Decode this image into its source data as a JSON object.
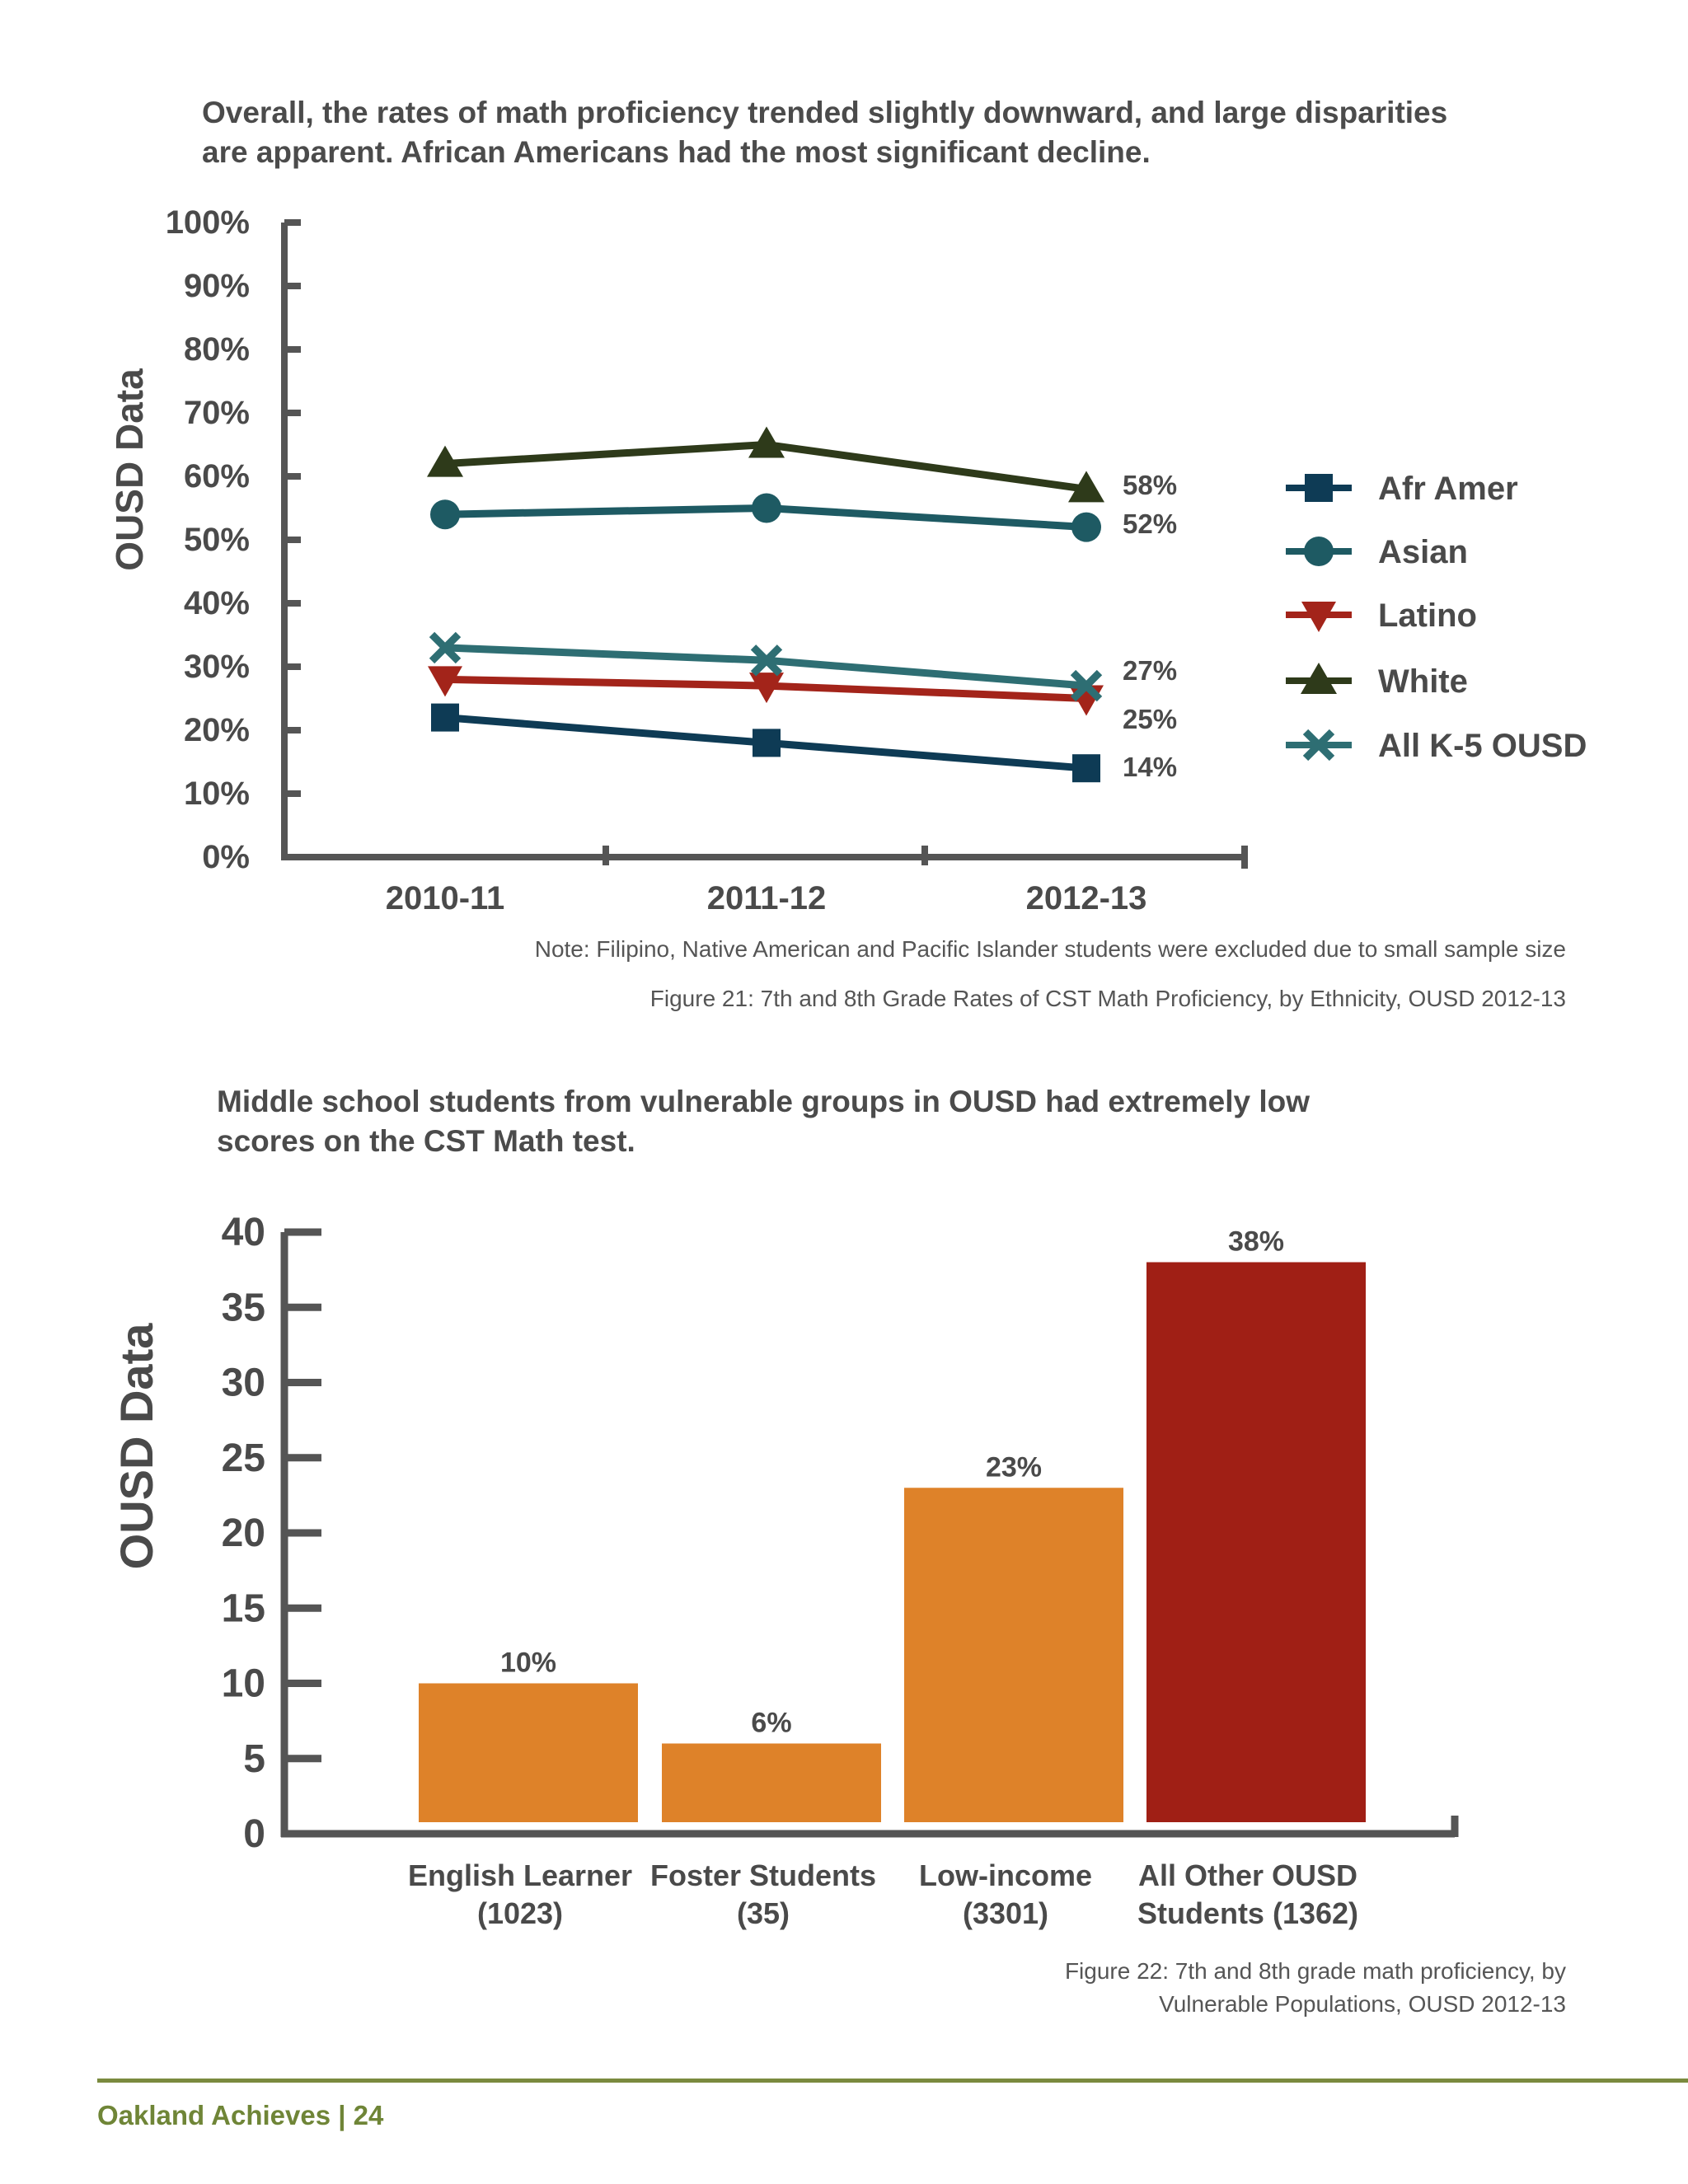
{
  "figure1": {
    "headline": [
      "Overall, the rates of math proficiency trended slightly downward, and large disparities",
      "are apparent.  African Americans had the most significant decline."
    ],
    "note": "Note: Filipino, Native American and Pacific Islander  students were excluded due to small sample size",
    "caption": "Figure 21: 7th and 8th Grade Rates of CST Math Proficiency, by Ethnicity, OUSD 2012-13"
  },
  "figure2": {
    "headline": [
      "Middle school students from vulnerable groups in OUSD had extremely low",
      "scores on the CST Math test."
    ],
    "caption": [
      "Figure 22: 7th and 8th grade math proficiency, by",
      "Vulnerable Populations, OUSD 2012-13"
    ]
  },
  "footer": {
    "text": "Oakland Achieves | 24"
  },
  "colors": {
    "axis": "#555555",
    "afr_amer": "#0e3b55",
    "asian": "#1e5a63",
    "latino": "#a3241a",
    "white": "#2e3a1a",
    "all_k5": "#2e6e73",
    "bar_orange": "#de8229",
    "bar_red": "#a01f15",
    "footer": "#6f8537"
  },
  "chart_data": [
    {
      "type": "line",
      "ylabel": "OUSD Data",
      "ylim": [
        0,
        100
      ],
      "y_ticks": [
        "0%",
        "10%",
        "20%",
        "30%",
        "40%",
        "50%",
        "60%",
        "70%",
        "80%",
        "90%",
        "100%"
      ],
      "categories": [
        "2010-11",
        "2011-12",
        "2012-13"
      ],
      "legend_position": "right",
      "series": [
        {
          "name": "Afr Amer",
          "marker": "square",
          "color": "#0e3b55",
          "values": [
            22,
            18,
            14
          ],
          "end_label": "14%"
        },
        {
          "name": "Asian",
          "marker": "circle",
          "color": "#1e5a63",
          "values": [
            54,
            55,
            52
          ],
          "end_label": "52%"
        },
        {
          "name": "Latino",
          "marker": "triangle-down",
          "color": "#a3241a",
          "values": [
            28,
            27,
            25
          ],
          "end_label": "25%"
        },
        {
          "name": "White",
          "marker": "triangle-up",
          "color": "#2e3a1a",
          "values": [
            62,
            65,
            58
          ],
          "end_label": "58%"
        },
        {
          "name": "All K-5 OUSD",
          "marker": "x",
          "color": "#2e6e73",
          "values": [
            33,
            31,
            27
          ],
          "end_label": "27%"
        }
      ]
    },
    {
      "type": "bar",
      "ylabel": "OUSD Data",
      "ylim": [
        0,
        40
      ],
      "y_ticks": [
        "0",
        "5",
        "10",
        "15",
        "20",
        "25",
        "30",
        "35",
        "40"
      ],
      "categories": [
        [
          "English Learner",
          "(1023)"
        ],
        [
          "Foster Students",
          "(35)"
        ],
        [
          "Low-income",
          "(3301)"
        ],
        [
          "All Other OUSD",
          "Students (1362)"
        ]
      ],
      "values": [
        10,
        6,
        23,
        38
      ],
      "data_labels": [
        "10%",
        "6%",
        "23%",
        "38%"
      ],
      "bar_colors": [
        "#de8229",
        "#de8229",
        "#de8229",
        "#a01f15"
      ]
    }
  ]
}
